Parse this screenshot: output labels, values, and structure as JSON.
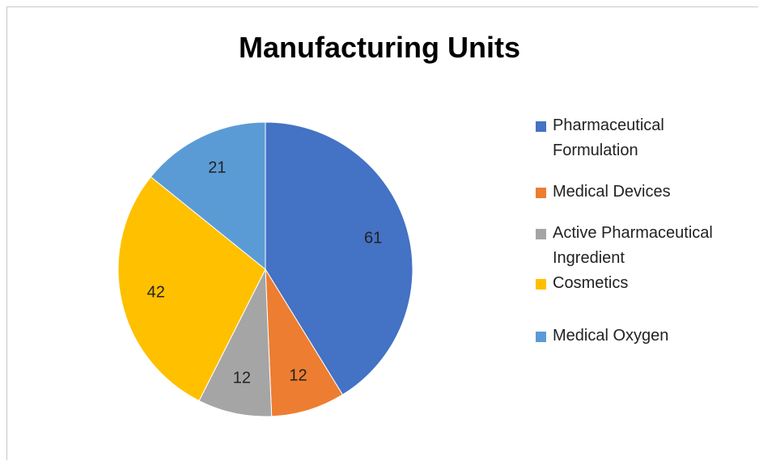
{
  "chart_data": {
    "type": "pie",
    "title": "Manufacturing Units",
    "categories": [
      "Pharmaceutical Formulation",
      "Medical Devices",
      "Active Pharmaceutical Ingredient",
      "Cosmetics",
      "Medical Oxygen"
    ],
    "values": [
      61,
      12,
      12,
      42,
      21
    ],
    "colors": [
      "#4472c4",
      "#ed7d31",
      "#a5a5a5",
      "#ffc000",
      "#5b9bd5"
    ],
    "legend": "right"
  }
}
